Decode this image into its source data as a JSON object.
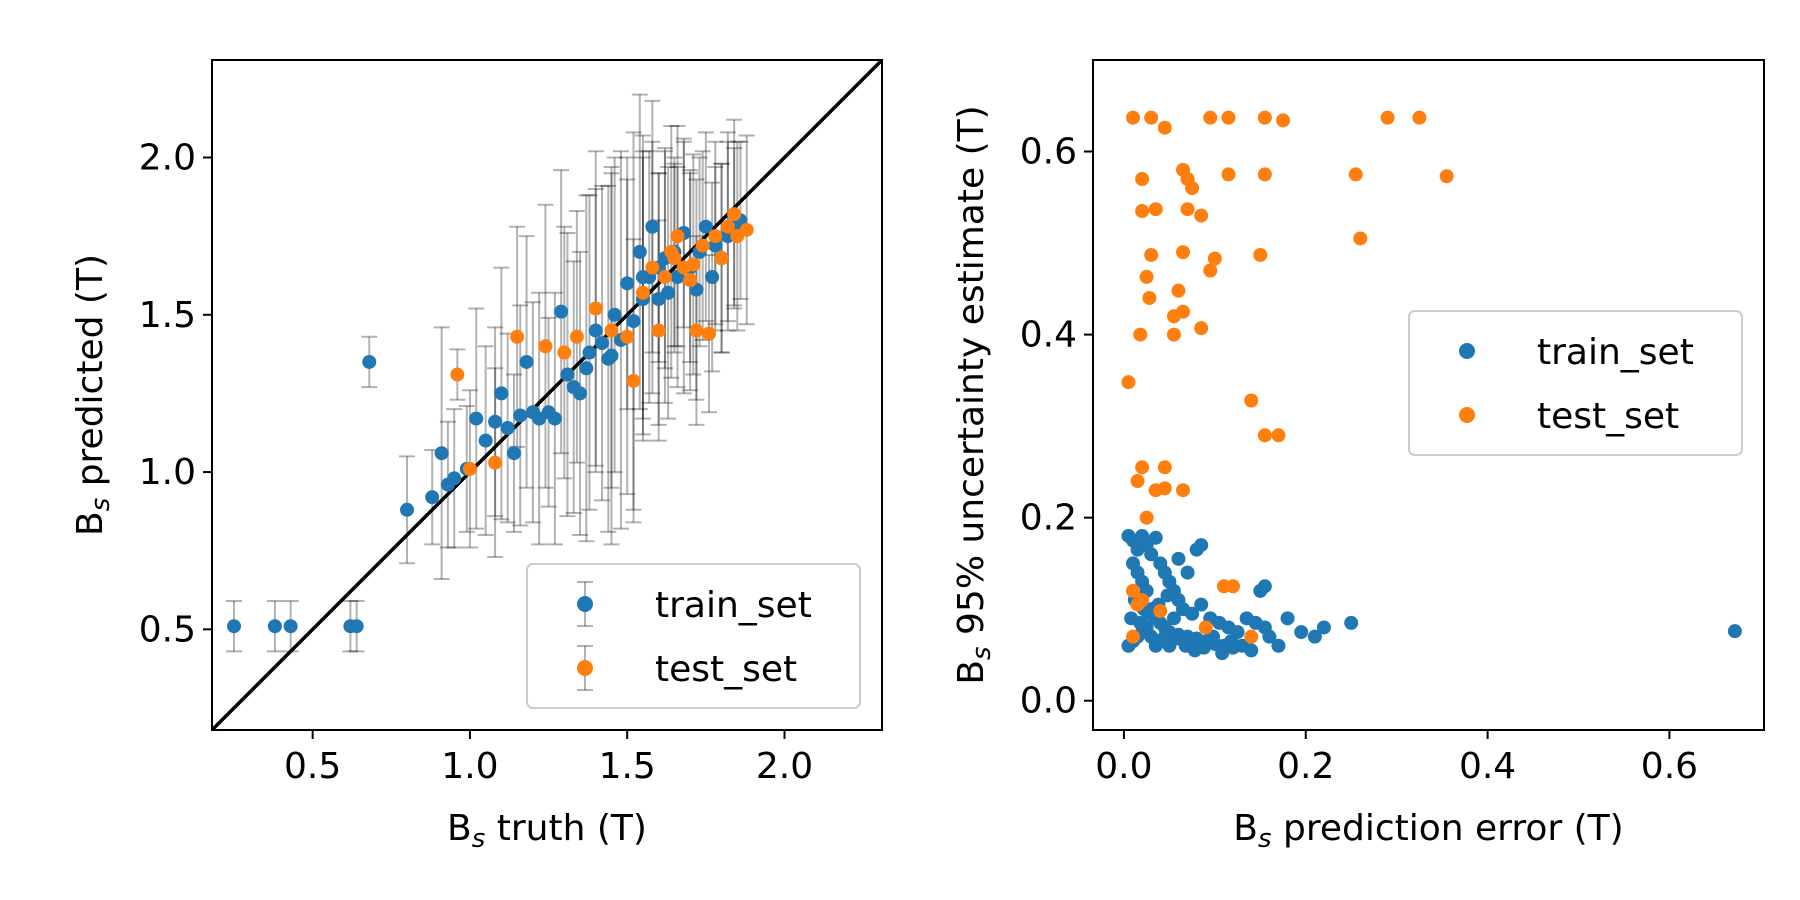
{
  "colors": {
    "train": "#1f77b4",
    "test": "#ff7f0e",
    "errorbar": "#000000",
    "diagonal": "#000000"
  },
  "chart_data": [
    {
      "type": "scatter",
      "xlabel": {
        "main": "B",
        "sub": "s",
        "rest": " truth (T)"
      },
      "ylabel": {
        "main": "B",
        "sub": "s",
        "rest": " predicted (T)"
      },
      "xlim": [
        0.18,
        2.31
      ],
      "ylim": [
        0.18,
        2.31
      ],
      "xticks": [
        0.5,
        1.0,
        1.5,
        2.0
      ],
      "xtick_labels": [
        "0.5",
        "1.0",
        "1.5",
        "2.0"
      ],
      "yticks": [
        0.5,
        1.0,
        1.5,
        2.0
      ],
      "ytick_labels": [
        "0.5",
        "1.0",
        "1.5",
        "2.0"
      ],
      "reference_line": "y = x",
      "legend_position": "lower-right",
      "series": [
        {
          "name": "train_set",
          "points": [
            [
              0.25,
              0.51,
              0.08
            ],
            [
              0.38,
              0.51,
              0.08
            ],
            [
              0.43,
              0.51,
              0.08
            ],
            [
              0.62,
              0.51,
              0.08
            ],
            [
              0.64,
              0.51,
              0.08
            ],
            [
              0.68,
              1.35,
              0.08
            ],
            [
              0.8,
              0.88,
              0.17
            ],
            [
              0.88,
              0.92,
              0.15
            ],
            [
              0.91,
              1.06,
              0.4
            ],
            [
              0.93,
              0.96,
              0.2
            ],
            [
              0.95,
              0.98,
              0.22
            ],
            [
              0.99,
              1.01,
              0.2
            ],
            [
              1.02,
              1.17,
              0.35
            ],
            [
              1.05,
              1.1,
              0.3
            ],
            [
              1.08,
              1.16,
              0.3
            ],
            [
              1.1,
              1.25,
              0.4
            ],
            [
              1.12,
              1.14,
              0.3
            ],
            [
              1.14,
              1.06,
              0.25
            ],
            [
              1.16,
              1.18,
              0.35
            ],
            [
              1.18,
              1.35,
              0.4
            ],
            [
              1.2,
              1.19,
              0.35
            ],
            [
              1.22,
              1.17,
              0.4
            ],
            [
              1.25,
              1.19,
              0.3
            ],
            [
              1.27,
              1.17,
              0.4
            ],
            [
              1.29,
              1.51,
              0.45
            ],
            [
              1.31,
              1.31,
              0.45
            ],
            [
              1.33,
              1.27,
              0.4
            ],
            [
              1.35,
              1.25,
              0.45
            ],
            [
              1.38,
              1.38,
              0.5
            ],
            [
              1.4,
              1.45,
              0.45
            ],
            [
              1.42,
              1.41,
              0.5
            ],
            [
              1.44,
              1.36,
              0.55
            ],
            [
              1.46,
              1.5,
              0.5
            ],
            [
              1.48,
              1.42,
              0.6
            ],
            [
              1.5,
              1.6,
              0.4
            ],
            [
              1.52,
              1.48,
              0.6
            ],
            [
              1.54,
              1.7,
              0.5
            ],
            [
              1.55,
              1.55,
              0.45
            ],
            [
              1.57,
              1.62,
              0.4
            ],
            [
              1.58,
              1.78,
              0.4
            ],
            [
              1.6,
              1.65,
              0.3
            ],
            [
              1.62,
              1.68,
              0.35
            ],
            [
              1.63,
              1.57,
              0.4
            ],
            [
              1.65,
              1.7,
              0.3
            ],
            [
              1.66,
              1.62,
              0.35
            ],
            [
              1.68,
              1.76,
              0.3
            ],
            [
              1.7,
              1.65,
              0.3
            ],
            [
              1.72,
              1.58,
              0.35
            ],
            [
              1.73,
              1.7,
              0.3
            ],
            [
              1.75,
              1.78,
              0.3
            ],
            [
              1.77,
              1.62,
              0.3
            ],
            [
              1.78,
              1.72,
              0.25
            ],
            [
              1.8,
              1.68,
              0.3
            ],
            [
              1.82,
              1.75,
              0.3
            ],
            [
              1.84,
              1.78,
              0.25
            ],
            [
              1.86,
              1.8,
              0.25
            ],
            [
              1.6,
              1.55,
              0.4
            ],
            [
              1.55,
              1.62,
              0.45
            ],
            [
              1.45,
              1.37,
              0.6
            ],
            [
              1.37,
              1.33,
              0.55
            ]
          ]
        },
        {
          "name": "test_set",
          "points": [
            [
              0.96,
              1.31,
              0.08
            ],
            [
              1.0,
              1.01,
              0.25
            ],
            [
              1.08,
              1.03,
              0.3
            ],
            [
              1.15,
              1.43,
              0.35
            ],
            [
              1.24,
              1.4,
              0.45
            ],
            [
              1.3,
              1.38,
              0.4
            ],
            [
              1.34,
              1.43,
              0.4
            ],
            [
              1.4,
              1.52,
              0.5
            ],
            [
              1.45,
              1.45,
              0.5
            ],
            [
              1.5,
              1.43,
              0.5
            ],
            [
              1.52,
              1.29,
              0.45
            ],
            [
              1.55,
              1.57,
              0.45
            ],
            [
              1.58,
              1.65,
              0.4
            ],
            [
              1.6,
              1.45,
              0.35
            ],
            [
              1.62,
              1.62,
              0.4
            ],
            [
              1.64,
              1.7,
              0.4
            ],
            [
              1.66,
              1.75,
              0.35
            ],
            [
              1.68,
              1.65,
              0.4
            ],
            [
              1.7,
              1.61,
              0.35
            ],
            [
              1.72,
              1.45,
              0.3
            ],
            [
              1.74,
              1.72,
              0.3
            ],
            [
              1.76,
              1.44,
              0.25
            ],
            [
              1.78,
              1.75,
              0.3
            ],
            [
              1.8,
              1.68,
              0.3
            ],
            [
              1.82,
              1.78,
              0.3
            ],
            [
              1.84,
              1.82,
              0.3
            ],
            [
              1.85,
              1.75,
              0.3
            ],
            [
              1.88,
              1.77,
              0.3
            ],
            [
              1.71,
              1.66,
              0.35
            ],
            [
              1.65,
              1.68,
              0.3
            ]
          ]
        }
      ]
    },
    {
      "type": "scatter",
      "xlabel": {
        "main": "B",
        "sub": "s",
        "rest": " prediction error (T)"
      },
      "ylabel": {
        "main": "B",
        "sub": "s",
        "rest": " 95% uncertainty estimate (T)"
      },
      "xlim": [
        -0.034,
        0.704
      ],
      "ylim": [
        -0.032,
        0.7
      ],
      "xticks": [
        0.0,
        0.2,
        0.4,
        0.6
      ],
      "xtick_labels": [
        "0.0",
        "0.2",
        "0.4",
        "0.6"
      ],
      "yticks": [
        0.0,
        0.2,
        0.4,
        0.6
      ],
      "ytick_labels": [
        "0.0",
        "0.2",
        "0.4",
        "0.6"
      ],
      "legend_position": "center-right",
      "series": [
        {
          "name": "train_set",
          "points": [
            [
              0.005,
              0.18
            ],
            [
              0.01,
              0.175
            ],
            [
              0.015,
              0.165
            ],
            [
              0.02,
              0.18
            ],
            [
              0.025,
              0.17
            ],
            [
              0.03,
              0.16
            ],
            [
              0.035,
              0.178
            ],
            [
              0.04,
              0.15
            ],
            [
              0.045,
              0.14
            ],
            [
              0.05,
              0.13
            ],
            [
              0.055,
              0.12
            ],
            [
              0.06,
              0.11
            ],
            [
              0.01,
              0.15
            ],
            [
              0.015,
              0.14
            ],
            [
              0.02,
              0.13
            ],
            [
              0.025,
              0.12
            ],
            [
              0.03,
              0.1
            ],
            [
              0.035,
              0.09
            ],
            [
              0.04,
              0.085
            ],
            [
              0.045,
              0.08
            ],
            [
              0.05,
              0.075
            ],
            [
              0.06,
              0.072
            ],
            [
              0.07,
              0.07
            ],
            [
              0.08,
              0.068
            ],
            [
              0.09,
              0.065
            ],
            [
              0.1,
              0.062
            ],
            [
              0.11,
              0.06
            ],
            [
              0.12,
              0.058
            ],
            [
              0.13,
              0.06
            ],
            [
              0.14,
              0.055
            ],
            [
              0.005,
              0.06
            ],
            [
              0.01,
              0.065
            ],
            [
              0.015,
              0.07
            ],
            [
              0.02,
              0.075
            ],
            [
              0.025,
              0.08
            ],
            [
              0.03,
              0.07
            ],
            [
              0.035,
              0.06
            ],
            [
              0.04,
              0.065
            ],
            [
              0.045,
              0.07
            ],
            [
              0.05,
              0.06
            ],
            [
              0.055,
              0.09
            ],
            [
              0.065,
              0.1
            ],
            [
              0.075,
              0.095
            ],
            [
              0.085,
              0.105
            ],
            [
              0.095,
              0.09
            ],
            [
              0.105,
              0.085
            ],
            [
              0.115,
              0.08
            ],
            [
              0.125,
              0.075
            ],
            [
              0.135,
              0.09
            ],
            [
              0.145,
              0.085
            ],
            [
              0.155,
              0.08
            ],
            [
              0.16,
              0.07
            ],
            [
              0.17,
              0.06
            ],
            [
              0.18,
              0.09
            ],
            [
              0.195,
              0.075
            ],
            [
              0.21,
              0.07
            ],
            [
              0.22,
              0.08
            ],
            [
              0.25,
              0.085
            ],
            [
              0.155,
              0.125
            ],
            [
              0.15,
              0.12
            ],
            [
              0.085,
              0.17
            ],
            [
              0.08,
              0.165
            ],
            [
              0.06,
              0.155
            ],
            [
              0.07,
              0.14
            ],
            [
              0.012,
              0.11
            ],
            [
              0.022,
              0.1
            ],
            [
              0.008,
              0.09
            ],
            [
              0.018,
              0.085
            ],
            [
              0.028,
              0.095
            ],
            [
              0.038,
              0.105
            ],
            [
              0.048,
              0.115
            ],
            [
              0.058,
              0.068
            ],
            [
              0.068,
              0.06
            ],
            [
              0.078,
              0.055
            ],
            [
              0.088,
              0.058
            ],
            [
              0.098,
              0.07
            ],
            [
              0.108,
              0.052
            ],
            [
              0.118,
              0.065
            ],
            [
              0.672,
              0.076
            ]
          ]
        },
        {
          "name": "test_set",
          "points": [
            [
              0.01,
              0.637
            ],
            [
              0.03,
              0.637
            ],
            [
              0.045,
              0.626
            ],
            [
              0.095,
              0.637
            ],
            [
              0.115,
              0.637
            ],
            [
              0.155,
              0.637
            ],
            [
              0.175,
              0.634
            ],
            [
              0.29,
              0.637
            ],
            [
              0.325,
              0.637
            ],
            [
              0.02,
              0.57
            ],
            [
              0.065,
              0.58
            ],
            [
              0.07,
              0.57
            ],
            [
              0.075,
              0.56
            ],
            [
              0.115,
              0.575
            ],
            [
              0.155,
              0.575
            ],
            [
              0.255,
              0.575
            ],
            [
              0.355,
              0.573
            ],
            [
              0.02,
              0.535
            ],
            [
              0.035,
              0.537
            ],
            [
              0.07,
              0.537
            ],
            [
              0.085,
              0.53
            ],
            [
              0.03,
              0.487
            ],
            [
              0.065,
              0.49
            ],
            [
              0.1,
              0.483
            ],
            [
              0.15,
              0.487
            ],
            [
              0.26,
              0.505
            ],
            [
              0.025,
              0.463
            ],
            [
              0.06,
              0.448
            ],
            [
              0.095,
              0.47
            ],
            [
              0.028,
              0.44
            ],
            [
              0.055,
              0.42
            ],
            [
              0.065,
              0.425
            ],
            [
              0.018,
              0.4
            ],
            [
              0.055,
              0.4
            ],
            [
              0.085,
              0.407
            ],
            [
              0.005,
              0.348
            ],
            [
              0.14,
              0.328
            ],
            [
              0.155,
              0.29
            ],
            [
              0.17,
              0.29
            ],
            [
              0.02,
              0.255
            ],
            [
              0.045,
              0.255
            ],
            [
              0.015,
              0.24
            ],
            [
              0.035,
              0.23
            ],
            [
              0.045,
              0.232
            ],
            [
              0.065,
              0.23
            ],
            [
              0.025,
              0.2
            ],
            [
              0.01,
              0.12
            ],
            [
              0.015,
              0.105
            ],
            [
              0.02,
              0.11
            ],
            [
              0.04,
              0.098
            ],
            [
              0.11,
              0.125
            ],
            [
              0.12,
              0.125
            ],
            [
              0.09,
              0.08
            ],
            [
              0.14,
              0.07
            ],
            [
              0.01,
              0.07
            ]
          ]
        }
      ]
    }
  ]
}
